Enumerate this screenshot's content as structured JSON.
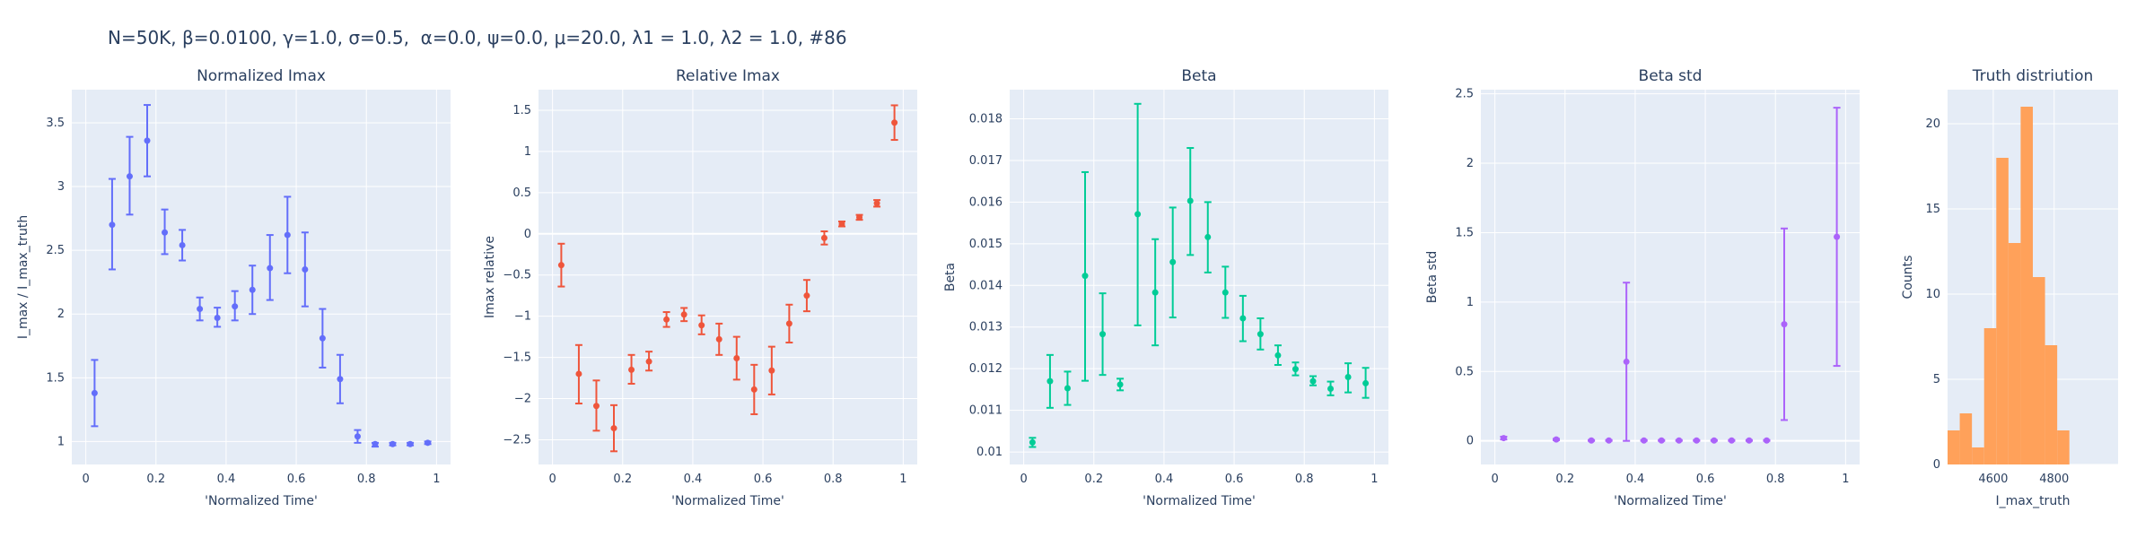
{
  "main_title": "N=50K, β=0.0100, γ=1.0, σ=0.5,  α=0.0, ψ=0.0, μ=20.0, λ1 = 1.0, λ2 = 1.0, #86",
  "colors": {
    "plot_bg": "#E5ECF6",
    "grid": "#ffffff",
    "text": "#2a3f5f",
    "series": [
      "#636EFA",
      "#EF553B",
      "#00CC96",
      "#AB63FA",
      "#FFA15A"
    ]
  },
  "chart_data": [
    {
      "type": "scatter",
      "title": "Normalized Imax",
      "xlabel": "'Normalized Time'",
      "ylabel": "I_max / I_max_truth",
      "xlim": [
        -0.04,
        1.04
      ],
      "ylim": [
        0.82,
        3.76
      ],
      "xticks": [
        0,
        0.2,
        0.4,
        0.6,
        0.8,
        1
      ],
      "xtick_labels": [
        "0",
        "0.2",
        "0.4",
        "0.6",
        "0.8",
        "1"
      ],
      "yticks": [
        1,
        1.5,
        2,
        2.5,
        3,
        3.5
      ],
      "ytick_labels": [
        "1",
        "1.5",
        "2",
        "2.5",
        "3",
        "3.5"
      ],
      "color": "#636EFA",
      "points": [
        {
          "x": 0.025,
          "y": 1.38,
          "lo": 1.12,
          "hi": 1.64
        },
        {
          "x": 0.075,
          "y": 2.7,
          "lo": 2.35,
          "hi": 3.06
        },
        {
          "x": 0.125,
          "y": 3.08,
          "lo": 2.78,
          "hi": 3.39
        },
        {
          "x": 0.175,
          "y": 3.36,
          "lo": 3.08,
          "hi": 3.64
        },
        {
          "x": 0.225,
          "y": 2.64,
          "lo": 2.47,
          "hi": 2.82
        },
        {
          "x": 0.275,
          "y": 2.54,
          "lo": 2.42,
          "hi": 2.66
        },
        {
          "x": 0.325,
          "y": 2.04,
          "lo": 1.95,
          "hi": 2.13
        },
        {
          "x": 0.375,
          "y": 1.97,
          "lo": 1.9,
          "hi": 2.05
        },
        {
          "x": 0.425,
          "y": 2.06,
          "lo": 1.95,
          "hi": 2.18
        },
        {
          "x": 0.475,
          "y": 2.19,
          "lo": 2.0,
          "hi": 2.38
        },
        {
          "x": 0.525,
          "y": 2.36,
          "lo": 2.11,
          "hi": 2.62
        },
        {
          "x": 0.575,
          "y": 2.62,
          "lo": 2.32,
          "hi": 2.92
        },
        {
          "x": 0.625,
          "y": 2.35,
          "lo": 2.06,
          "hi": 2.64
        },
        {
          "x": 0.675,
          "y": 1.81,
          "lo": 1.58,
          "hi": 2.04
        },
        {
          "x": 0.725,
          "y": 1.49,
          "lo": 1.3,
          "hi": 1.68
        },
        {
          "x": 0.775,
          "y": 1.04,
          "lo": 0.99,
          "hi": 1.09
        },
        {
          "x": 0.825,
          "y": 0.98,
          "lo": 0.96,
          "hi": 0.99
        },
        {
          "x": 0.875,
          "y": 0.98,
          "lo": 0.97,
          "hi": 0.99
        },
        {
          "x": 0.925,
          "y": 0.98,
          "lo": 0.97,
          "hi": 0.99
        },
        {
          "x": 0.975,
          "y": 0.99,
          "lo": 0.98,
          "hi": 1.0
        }
      ]
    },
    {
      "type": "scatter",
      "title": "Relative Imax",
      "xlabel": "'Normalized Time'",
      "ylabel": "Imax relative",
      "xlim": [
        -0.04,
        1.04
      ],
      "ylim": [
        -2.8,
        1.75
      ],
      "xticks": [
        0,
        0.2,
        0.4,
        0.6,
        0.8,
        1
      ],
      "xtick_labels": [
        "0",
        "0.2",
        "0.4",
        "0.6",
        "0.8",
        "1"
      ],
      "yticks": [
        -2.5,
        -2,
        -1.5,
        -1,
        -0.5,
        0,
        0.5,
        1,
        1.5
      ],
      "ytick_labels": [
        "−2.5",
        "−2",
        "−1.5",
        "−1",
        "−0.5",
        "0",
        "0.5",
        "1",
        "1.5"
      ],
      "zeroline": 0,
      "color": "#EF553B",
      "points": [
        {
          "x": 0.025,
          "y": -0.38,
          "lo": -0.64,
          "hi": -0.12
        },
        {
          "x": 0.075,
          "y": -1.7,
          "lo": -2.06,
          "hi": -1.35
        },
        {
          "x": 0.125,
          "y": -2.09,
          "lo": -2.39,
          "hi": -1.78
        },
        {
          "x": 0.175,
          "y": -2.36,
          "lo": -2.64,
          "hi": -2.08
        },
        {
          "x": 0.225,
          "y": -1.65,
          "lo": -1.82,
          "hi": -1.47
        },
        {
          "x": 0.275,
          "y": -1.55,
          "lo": -1.66,
          "hi": -1.43
        },
        {
          "x": 0.325,
          "y": -1.04,
          "lo": -1.13,
          "hi": -0.95
        },
        {
          "x": 0.375,
          "y": -0.98,
          "lo": -1.06,
          "hi": -0.9
        },
        {
          "x": 0.425,
          "y": -1.11,
          "lo": -1.22,
          "hi": -0.99
        },
        {
          "x": 0.475,
          "y": -1.28,
          "lo": -1.47,
          "hi": -1.09
        },
        {
          "x": 0.525,
          "y": -1.51,
          "lo": -1.77,
          "hi": -1.25
        },
        {
          "x": 0.575,
          "y": -1.89,
          "lo": -2.19,
          "hi": -1.59
        },
        {
          "x": 0.625,
          "y": -1.66,
          "lo": -1.95,
          "hi": -1.37
        },
        {
          "x": 0.675,
          "y": -1.09,
          "lo": -1.32,
          "hi": -0.86
        },
        {
          "x": 0.725,
          "y": -0.75,
          "lo": -0.94,
          "hi": -0.56
        },
        {
          "x": 0.775,
          "y": -0.05,
          "lo": -0.13,
          "hi": 0.03
        },
        {
          "x": 0.825,
          "y": 0.12,
          "lo": 0.09,
          "hi": 0.15
        },
        {
          "x": 0.875,
          "y": 0.2,
          "lo": 0.17,
          "hi": 0.23
        },
        {
          "x": 0.925,
          "y": 0.37,
          "lo": 0.33,
          "hi": 0.41
        },
        {
          "x": 0.975,
          "y": 1.35,
          "lo": 1.14,
          "hi": 1.56
        }
      ]
    },
    {
      "type": "scatter",
      "title": "Beta",
      "xlabel": "'Normalized Time'",
      "ylabel": "Beta",
      "xlim": [
        -0.04,
        1.04
      ],
      "ylim": [
        0.0097,
        0.0187
      ],
      "xticks": [
        0,
        0.2,
        0.4,
        0.6,
        0.8,
        1
      ],
      "xtick_labels": [
        "0",
        "0.2",
        "0.4",
        "0.6",
        "0.8",
        "1"
      ],
      "yticks": [
        0.01,
        0.011,
        0.012,
        0.013,
        0.014,
        0.015,
        0.016,
        0.017,
        0.018
      ],
      "ytick_labels": [
        "0.01",
        "0.011",
        "0.012",
        "0.013",
        "0.014",
        "0.015",
        "0.016",
        "0.017",
        "0.018"
      ],
      "color": "#00CC96",
      "points": [
        {
          "x": 0.025,
          "y": 0.01023,
          "lo": 0.01012,
          "hi": 0.01034
        },
        {
          "x": 0.075,
          "y": 0.0117,
          "lo": 0.01106,
          "hi": 0.01233
        },
        {
          "x": 0.125,
          "y": 0.01153,
          "lo": 0.01113,
          "hi": 0.01193
        },
        {
          "x": 0.175,
          "y": 0.01423,
          "lo": 0.01171,
          "hi": 0.01672
        },
        {
          "x": 0.225,
          "y": 0.01283,
          "lo": 0.01185,
          "hi": 0.01381
        },
        {
          "x": 0.275,
          "y": 0.01162,
          "lo": 0.01148,
          "hi": 0.01176
        },
        {
          "x": 0.325,
          "y": 0.01571,
          "lo": 0.01304,
          "hi": 0.01836
        },
        {
          "x": 0.375,
          "y": 0.01383,
          "lo": 0.01256,
          "hi": 0.01511
        },
        {
          "x": 0.425,
          "y": 0.01456,
          "lo": 0.01323,
          "hi": 0.01587
        },
        {
          "x": 0.475,
          "y": 0.01603,
          "lo": 0.01473,
          "hi": 0.0173
        },
        {
          "x": 0.525,
          "y": 0.01516,
          "lo": 0.01431,
          "hi": 0.016
        },
        {
          "x": 0.575,
          "y": 0.01383,
          "lo": 0.01322,
          "hi": 0.01445
        },
        {
          "x": 0.625,
          "y": 0.01321,
          "lo": 0.01266,
          "hi": 0.01375
        },
        {
          "x": 0.675,
          "y": 0.01283,
          "lo": 0.01246,
          "hi": 0.01321
        },
        {
          "x": 0.725,
          "y": 0.01232,
          "lo": 0.01209,
          "hi": 0.01256
        },
        {
          "x": 0.775,
          "y": 0.01199,
          "lo": 0.01184,
          "hi": 0.01215
        },
        {
          "x": 0.825,
          "y": 0.0117,
          "lo": 0.0116,
          "hi": 0.01182
        },
        {
          "x": 0.875,
          "y": 0.01152,
          "lo": 0.01136,
          "hi": 0.01169
        },
        {
          "x": 0.925,
          "y": 0.0118,
          "lo": 0.01143,
          "hi": 0.01213
        },
        {
          "x": 0.975,
          "y": 0.01165,
          "lo": 0.0113,
          "hi": 0.01202
        }
      ]
    },
    {
      "type": "scatter",
      "title": "Beta std",
      "xlabel": "'Normalized Time'",
      "ylabel": "Beta std",
      "xlim": [
        -0.04,
        1.04
      ],
      "ylim": [
        -0.17,
        2.53
      ],
      "xticks": [
        0,
        0.2,
        0.4,
        0.6,
        0.8,
        1
      ],
      "xtick_labels": [
        "0",
        "0.2",
        "0.4",
        "0.6",
        "0.8",
        "1"
      ],
      "yticks": [
        0,
        0.5,
        1,
        1.5,
        2,
        2.5
      ],
      "ytick_labels": [
        "0",
        "0.5",
        "1",
        "1.5",
        "2",
        "2.5"
      ],
      "zeroline": 0,
      "color": "#AB63FA",
      "points": [
        {
          "x": 0.025,
          "y": 0.02,
          "lo": 0.01,
          "hi": 0.03
        },
        {
          "x": 0.175,
          "y": 0.01,
          "lo": 0.005,
          "hi": 0.015
        },
        {
          "x": 0.275,
          "y": 0.003,
          "lo": 0.0,
          "hi": 0.006
        },
        {
          "x": 0.325,
          "y": 0.003,
          "lo": 0.0,
          "hi": 0.006
        },
        {
          "x": 0.375,
          "y": 0.57,
          "lo": 0.0,
          "hi": 1.14
        },
        {
          "x": 0.425,
          "y": 0.003,
          "lo": 0.0,
          "hi": 0.006
        },
        {
          "x": 0.475,
          "y": 0.003,
          "lo": 0.0,
          "hi": 0.006
        },
        {
          "x": 0.525,
          "y": 0.003,
          "lo": 0.0,
          "hi": 0.006
        },
        {
          "x": 0.575,
          "y": 0.003,
          "lo": 0.0,
          "hi": 0.006
        },
        {
          "x": 0.625,
          "y": 0.003,
          "lo": 0.0,
          "hi": 0.006
        },
        {
          "x": 0.675,
          "y": 0.003,
          "lo": 0.0,
          "hi": 0.006
        },
        {
          "x": 0.725,
          "y": 0.003,
          "lo": 0.0,
          "hi": 0.006
        },
        {
          "x": 0.775,
          "y": 0.003,
          "lo": 0.0,
          "hi": 0.006
        },
        {
          "x": 0.825,
          "y": 0.84,
          "lo": 0.15,
          "hi": 1.53
        },
        {
          "x": 0.975,
          "y": 1.47,
          "lo": 0.54,
          "hi": 2.4
        }
      ]
    },
    {
      "type": "bar",
      "title": "Truth distriution",
      "xlabel": "I_max_truth",
      "ylabel": "Counts",
      "xlim": [
        4450,
        5010
      ],
      "ylim": [
        0,
        22
      ],
      "xticks": [
        4600,
        4800
      ],
      "xtick_labels": [
        "4600",
        "4800"
      ],
      "yticks": [
        0,
        5,
        10,
        15,
        20
      ],
      "ytick_labels": [
        "0",
        "5",
        "10",
        "15",
        "20"
      ],
      "color": "#FFA15A",
      "bin_width": 40,
      "bins": [
        {
          "x0": 4450,
          "x1": 4490,
          "count": 2
        },
        {
          "x0": 4490,
          "x1": 4530,
          "count": 3
        },
        {
          "x0": 4530,
          "x1": 4570,
          "count": 1
        },
        {
          "x0": 4570,
          "x1": 4610,
          "count": 8
        },
        {
          "x0": 4610,
          "x1": 4650,
          "count": 18
        },
        {
          "x0": 4650,
          "x1": 4690,
          "count": 13
        },
        {
          "x0": 4690,
          "x1": 4730,
          "count": 21
        },
        {
          "x0": 4730,
          "x1": 4770,
          "count": 11
        },
        {
          "x0": 4770,
          "x1": 4810,
          "count": 7
        },
        {
          "x0": 4810,
          "x1": 4850,
          "count": 2
        }
      ]
    }
  ]
}
